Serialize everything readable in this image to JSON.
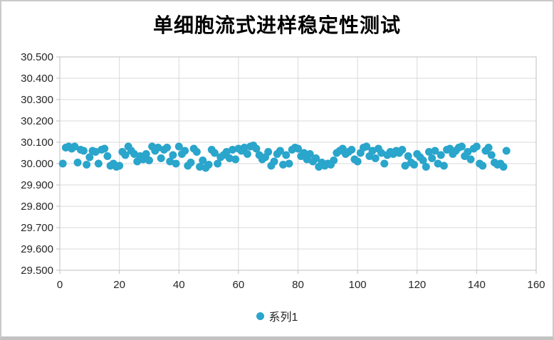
{
  "chart_data": {
    "type": "scatter",
    "title": "单细胞流式进样稳定性测试",
    "xlabel": "",
    "ylabel": "",
    "grid": {
      "shown": true,
      "color": "#d9d9d9",
      "border_color": "#bfbfbf"
    },
    "legend_position": "bottom",
    "x_axis": {
      "min": 0,
      "max": 160,
      "tick_step": 20,
      "tick_labels": [
        "0",
        "20",
        "40",
        "60",
        "80",
        "100",
        "120",
        "140",
        "160"
      ]
    },
    "y_axis": {
      "min": 29.5,
      "max": 30.5,
      "tick_step": 0.1,
      "tick_labels": [
        "30.500",
        "30.400",
        "30.300",
        "30.200",
        "30.100",
        "30.000",
        "29.900",
        "29.800",
        "29.700",
        "29.600",
        "29.500"
      ]
    },
    "series": [
      {
        "name": "系列1",
        "color": "#2aa5cb",
        "marker": "circle",
        "marker_radius": 5.5,
        "x_start": 1,
        "x_step": 1,
        "y": [
          30.0,
          30.075,
          30.08,
          30.07,
          30.08,
          30.005,
          30.065,
          30.06,
          29.995,
          30.03,
          30.06,
          30.055,
          30.0,
          30.065,
          30.07,
          30.035,
          29.99,
          30.0,
          29.985,
          29.99,
          30.055,
          30.04,
          30.08,
          30.06,
          30.045,
          30.01,
          30.035,
          30.02,
          30.045,
          30.015,
          30.08,
          30.06,
          30.075,
          30.025,
          30.065,
          30.075,
          30.01,
          30.04,
          30.0,
          30.08,
          30.045,
          30.06,
          29.99,
          30.005,
          30.07,
          30.055,
          29.985,
          30.015,
          29.98,
          29.995,
          30.065,
          30.05,
          30.0,
          30.03,
          30.04,
          30.055,
          30.025,
          30.065,
          30.02,
          30.07,
          30.06,
          30.075,
          30.045,
          30.08,
          30.085,
          30.07,
          30.04,
          30.02,
          30.03,
          30.055,
          29.99,
          30.01,
          30.045,
          30.06,
          29.995,
          30.04,
          30.0,
          30.065,
          30.075,
          30.07,
          30.035,
          30.05,
          30.02,
          30.045,
          30.01,
          30.025,
          29.985,
          30.005,
          29.99,
          30.0,
          29.995,
          30.015,
          30.05,
          30.06,
          30.07,
          30.045,
          30.055,
          30.065,
          30.02,
          30.01,
          30.05,
          30.075,
          30.08,
          30.035,
          30.06,
          30.025,
          30.07,
          30.05,
          30.0,
          30.04,
          30.055,
          30.045,
          30.06,
          30.05,
          30.065,
          29.99,
          30.035,
          30.005,
          29.995,
          30.045,
          30.03,
          30.015,
          29.985,
          30.055,
          30.025,
          30.06,
          30.0,
          30.04,
          29.99,
          30.065,
          30.07,
          30.045,
          30.06,
          30.075,
          30.08,
          30.035,
          30.055,
          30.02,
          30.07,
          30.08,
          30.0,
          29.99,
          30.06,
          30.075,
          30.04,
          30.005,
          29.995,
          30.0,
          29.985,
          30.06
        ]
      }
    ]
  }
}
